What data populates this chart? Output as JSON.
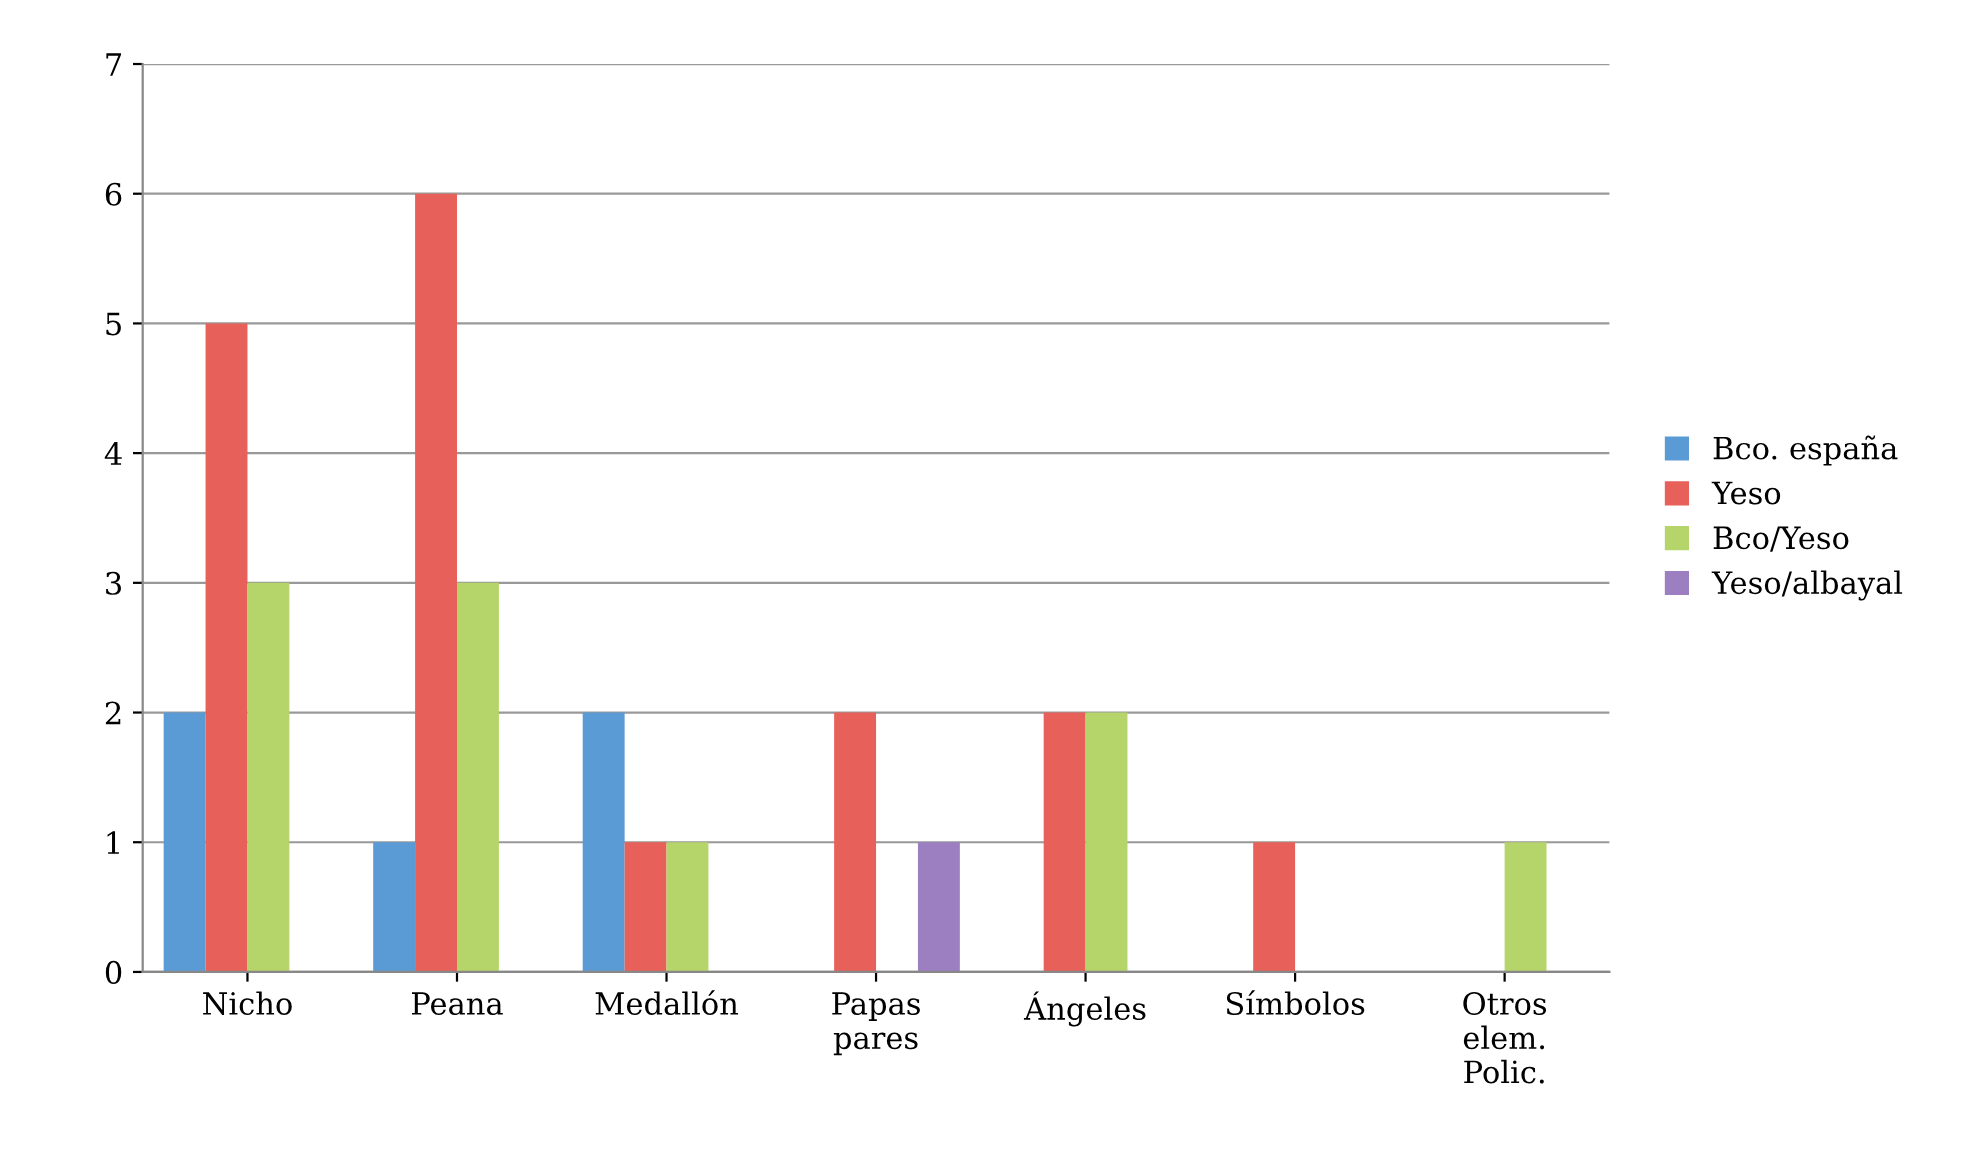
{
  "chart_data": {
    "type": "bar",
    "categories": [
      "Nicho",
      "Peana",
      "Medallón",
      "Papas\npares",
      "Ángeles",
      "Símbolos",
      "Otros\nelem.\nPolic."
    ],
    "series": [
      {
        "name": "Bco. españa",
        "color": "#5b9bd5",
        "values": [
          2,
          1,
          2,
          0,
          0,
          0,
          0
        ]
      },
      {
        "name": "Yeso",
        "color": "#e8605a",
        "values": [
          5,
          6,
          1,
          2,
          2,
          1,
          0
        ]
      },
      {
        "name": "Bco/Yeso",
        "color": "#b5d56a",
        "values": [
          3,
          3,
          1,
          0,
          2,
          0,
          1
        ]
      },
      {
        "name": "Yeso/albayal",
        "color": "#9b7fc0",
        "values": [
          0,
          0,
          0,
          1,
          0,
          0,
          0
        ]
      }
    ],
    "ylim": [
      0,
      7
    ],
    "yticks": [
      0,
      1,
      2,
      3,
      4,
      5,
      6,
      7
    ],
    "grid": "y",
    "legend": "right"
  }
}
